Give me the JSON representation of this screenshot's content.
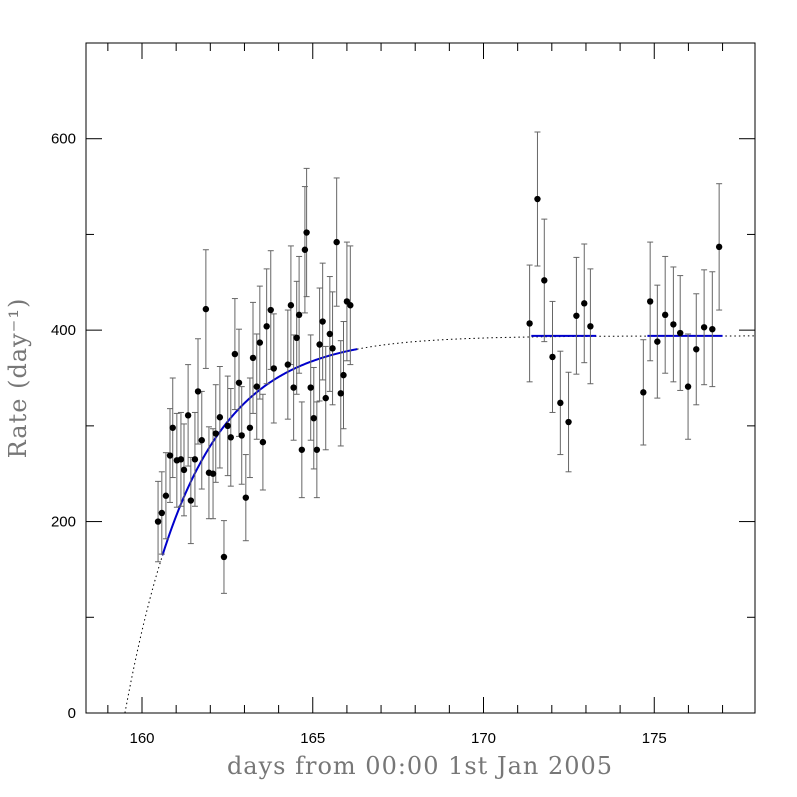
{
  "chart_data": {
    "type": "scatter",
    "x_label": "days from 00:00 1st Jan 2005",
    "y_label": "Rate (day⁻¹)",
    "xlim": [
      158.36,
      177.95
    ],
    "ylim": [
      0,
      700
    ],
    "xticks": [
      160,
      165,
      170,
      175
    ],
    "xminorticks": [
      159,
      161,
      162,
      163,
      164,
      166,
      167,
      168,
      169,
      171,
      172,
      173,
      174,
      176,
      177
    ],
    "yticks": [
      0,
      200,
      400,
      600
    ],
    "yminorticks": [
      100,
      300,
      500
    ],
    "color": "#000000",
    "error_color": "#666666",
    "x": [
      160.47,
      160.58,
      160.7,
      160.82,
      160.9,
      161.02,
      161.14,
      161.23,
      161.35,
      161.43,
      161.55,
      161.64,
      161.75,
      161.87,
      161.96,
      162.08,
      162.16,
      162.28,
      162.4,
      162.51,
      162.6,
      162.72,
      162.84,
      162.92,
      163.04,
      163.16,
      163.25,
      163.36,
      163.45,
      163.54,
      163.65,
      163.77,
      163.86,
      164.27,
      164.36,
      164.44,
      164.53,
      164.6,
      164.68,
      164.77,
      164.82,
      164.94,
      165.03,
      165.12,
      165.2,
      165.29,
      165.38,
      165.5,
      165.58,
      165.7,
      165.82,
      165.9,
      166.0,
      166.1,
      171.35,
      171.58,
      171.78,
      172.02,
      172.25,
      172.49,
      172.72,
      172.95,
      173.13,
      174.68,
      174.88,
      175.09,
      175.32,
      175.56,
      175.76,
      175.99,
      176.23,
      176.46,
      176.7,
      176.9
    ],
    "values": [
      200,
      209,
      227,
      269,
      298,
      264,
      265,
      254,
      311,
      222,
      265,
      336,
      285,
      422,
      251,
      250,
      292,
      309,
      163,
      300,
      288,
      375,
      345,
      290,
      225,
      298,
      371,
      341,
      387,
      283,
      404,
      421,
      360,
      364,
      426,
      340,
      392,
      416,
      275,
      484,
      502,
      340,
      308,
      275,
      385,
      409,
      329,
      396,
      381,
      492,
      334,
      353,
      430,
      426,
      407,
      537,
      452,
      372,
      324,
      304,
      415,
      428,
      404,
      335,
      430,
      388,
      416,
      406,
      397,
      341,
      380,
      403,
      401,
      487
    ],
    "errors": [
      42,
      43,
      45,
      49,
      52,
      49,
      49,
      48,
      53,
      45,
      49,
      55,
      51,
      62,
      48,
      47,
      51,
      53,
      38,
      52,
      51,
      58,
      56,
      51,
      45,
      52,
      58,
      55,
      59,
      50,
      60,
      62,
      57,
      57,
      62,
      55,
      59,
      61,
      50,
      66,
      67,
      55,
      53,
      50,
      59,
      61,
      54,
      60,
      59,
      67,
      55,
      56,
      62,
      62,
      61,
      70,
      64,
      58,
      54,
      52,
      61,
      62,
      60,
      55,
      62,
      59,
      61,
      60,
      60,
      55,
      58,
      60,
      60,
      66
    ],
    "fit": {
      "amplitude": 394,
      "t0": 159.5,
      "tau": 2.03,
      "color": "#0000cc",
      "segments": [
        [
          160.6,
          166.3
        ]
      ],
      "flat_segments": [
        [
          171.4,
          173.3
        ],
        [
          174.8,
          177.0
        ]
      ]
    }
  }
}
